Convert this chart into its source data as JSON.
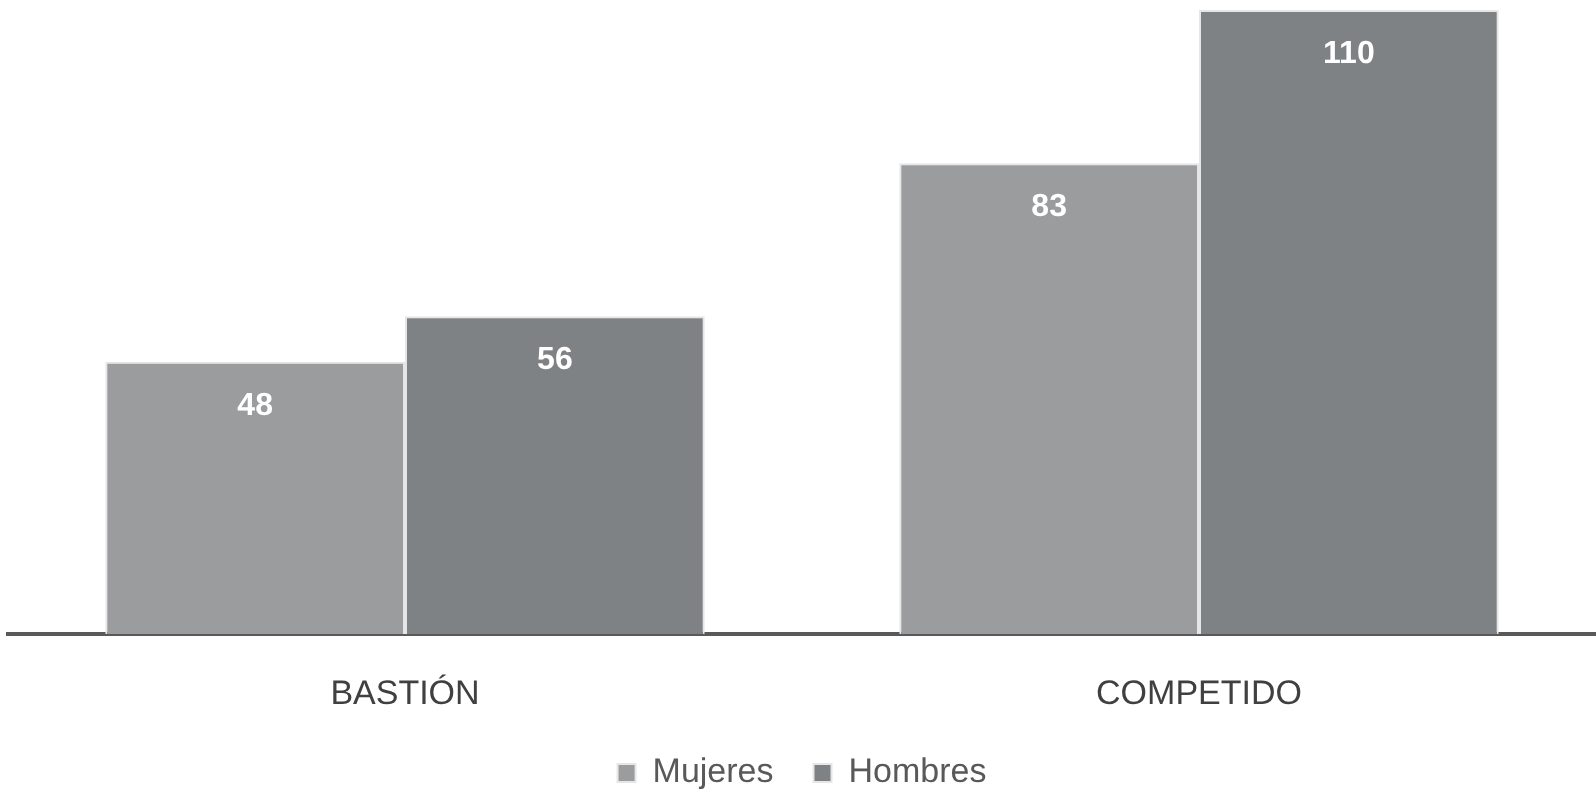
{
  "chart_data": {
    "type": "bar",
    "categories": [
      "BASTIÓN",
      "COMPETIDO"
    ],
    "series": [
      {
        "name": "Mujeres",
        "color": "#9a9c9e",
        "values": [
          48,
          83
        ]
      },
      {
        "name": "Hombres",
        "color": "#7f8285",
        "values": [
          56,
          110
        ]
      }
    ],
    "ylim": [
      0,
      110
    ],
    "tick_labels": "x",
    "grid": false,
    "data_labels": true,
    "legend": "bottom"
  }
}
